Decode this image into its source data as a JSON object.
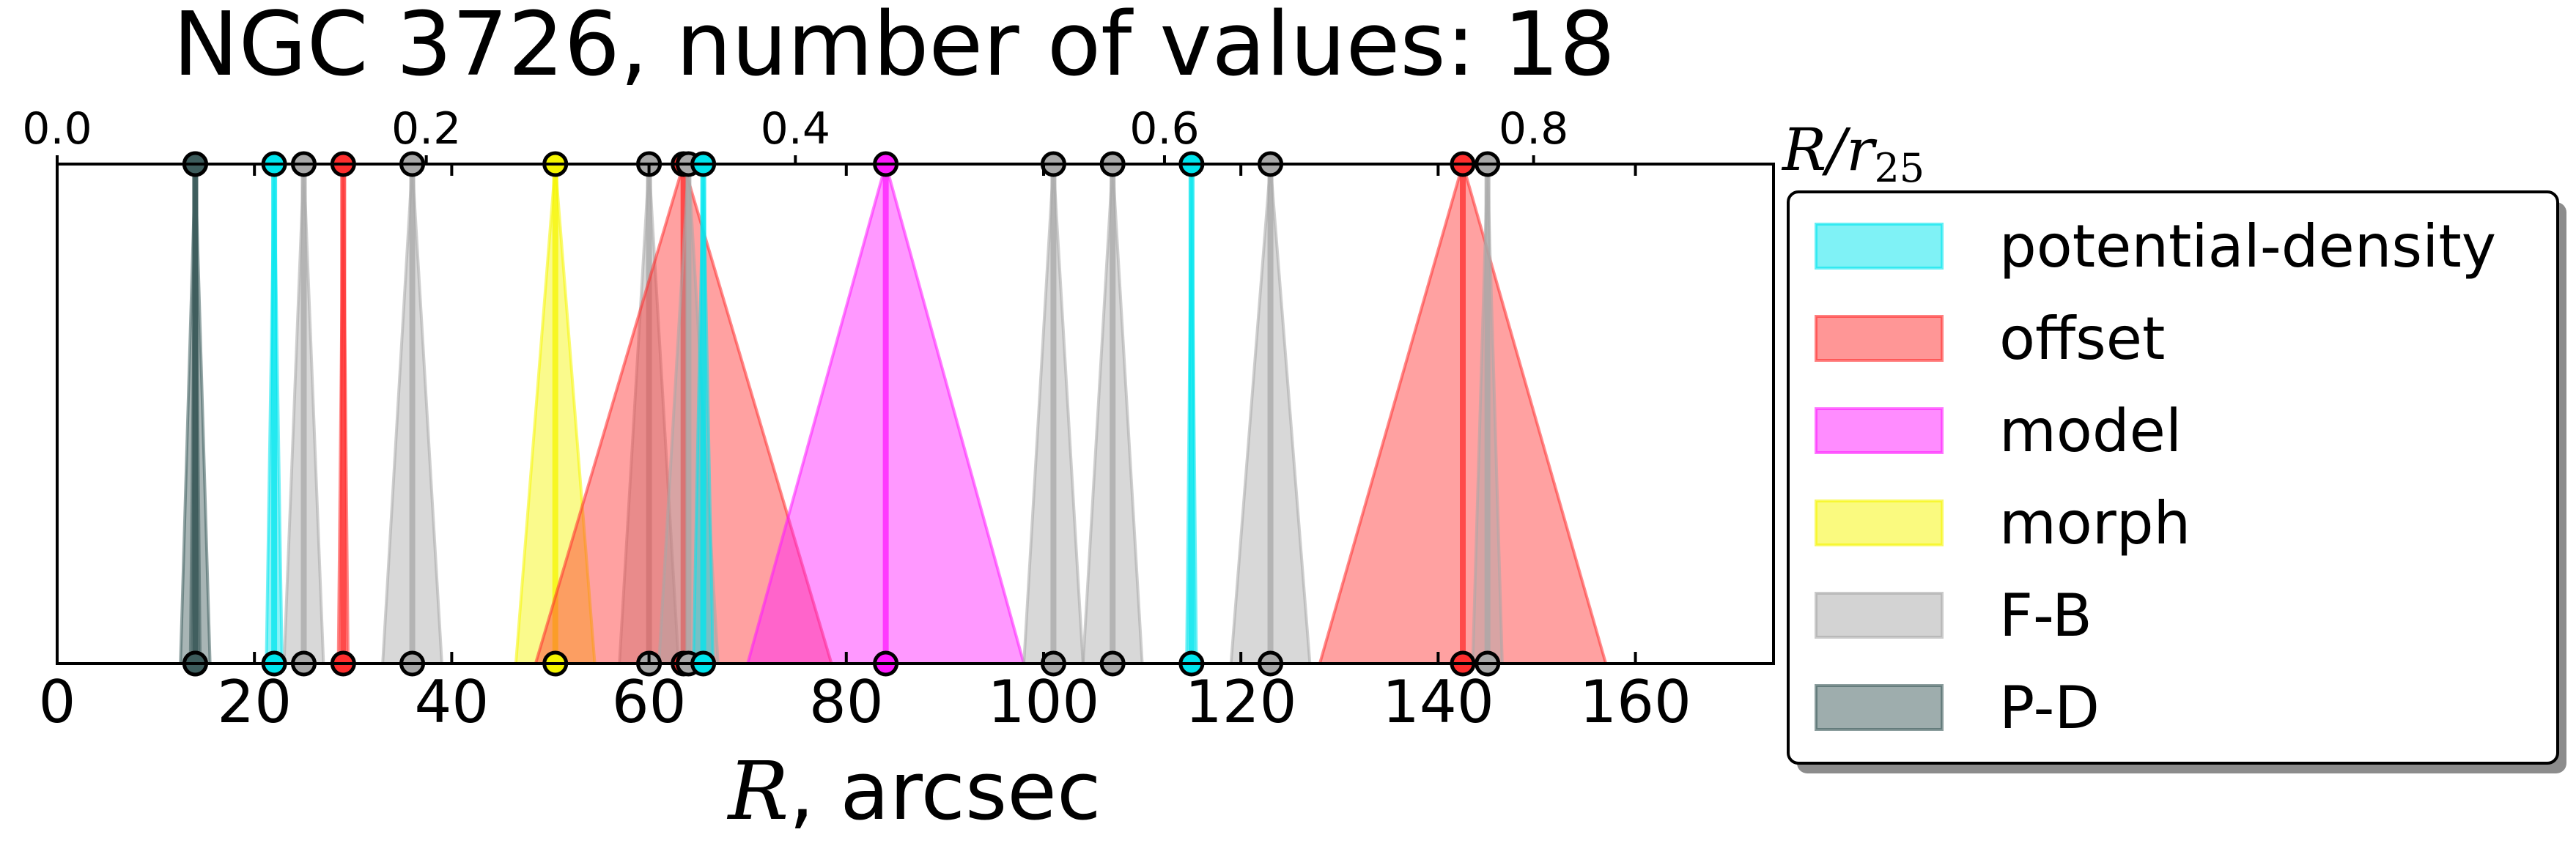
{
  "chart_data": {
    "type": "scatter",
    "title": "NGC 3726, number of values: 18",
    "xlabel": {
      "math": "R",
      "text": ", arcsec"
    },
    "top_axis_label": {
      "base": "R/r",
      "sub": "25"
    },
    "xlim": [
      0,
      174
    ],
    "top_xlim": [
      0,
      0.93
    ],
    "x_ticks": [
      0,
      20,
      40,
      60,
      80,
      100,
      120,
      140,
      160
    ],
    "x_tick_labels": [
      "0",
      "20",
      "40",
      "60",
      "80",
      "100",
      "120",
      "140",
      "160"
    ],
    "top_ticks": [
      0.0,
      0.2,
      0.4,
      0.6,
      0.8
    ],
    "top_tick_labels": [
      "0.0",
      "0.2",
      "0.4",
      "0.6",
      "0.8"
    ],
    "grid": false,
    "legend_position": "right",
    "categories": [
      {
        "key": "potential-density",
        "label": "potential-density",
        "color": "#00e5ee"
      },
      {
        "key": "offset",
        "label": "offset",
        "color": "#ff2e2e"
      },
      {
        "key": "model",
        "label": "model",
        "color": "#ff1aff"
      },
      {
        "key": "morph",
        "label": "morph",
        "color": "#f5f500"
      },
      {
        "key": "F-B",
        "label": "F-B",
        "color": "#a8a8a8"
      },
      {
        "key": "P-D",
        "label": "P-D",
        "color": "#3d5c5c"
      }
    ],
    "points": [
      {
        "method": "P-D",
        "r": 14,
        "err": 0.5
      },
      {
        "method": "P-D",
        "r": 14,
        "err": 1.5
      },
      {
        "method": "potential-density",
        "r": 22,
        "err": 0.8
      },
      {
        "method": "F-B",
        "r": 25,
        "err": 2.0
      },
      {
        "method": "offset",
        "r": 29,
        "err": 0.5
      },
      {
        "method": "F-B",
        "r": 36,
        "err": 3.0
      },
      {
        "method": "morph",
        "r": 50.5,
        "err": 4.0
      },
      {
        "method": "F-B",
        "r": 60,
        "err": 3.0
      },
      {
        "method": "offset",
        "r": 63.5,
        "err": 15.0
      },
      {
        "method": "F-B",
        "r": 64,
        "err": 3.0
      },
      {
        "method": "potential-density",
        "r": 65.5,
        "err": 1.0
      },
      {
        "method": "model",
        "r": 84,
        "err": 14.0
      },
      {
        "method": "F-B",
        "r": 101,
        "err": 3.0
      },
      {
        "method": "F-B",
        "r": 107,
        "err": 3.0
      },
      {
        "method": "potential-density",
        "r": 115,
        "err": 0.5
      },
      {
        "method": "F-B",
        "r": 123,
        "err": 4.0
      },
      {
        "method": "offset",
        "r": 142.5,
        "err": 14.5
      },
      {
        "method": "F-B",
        "r": 145,
        "err": 1.5
      }
    ]
  }
}
